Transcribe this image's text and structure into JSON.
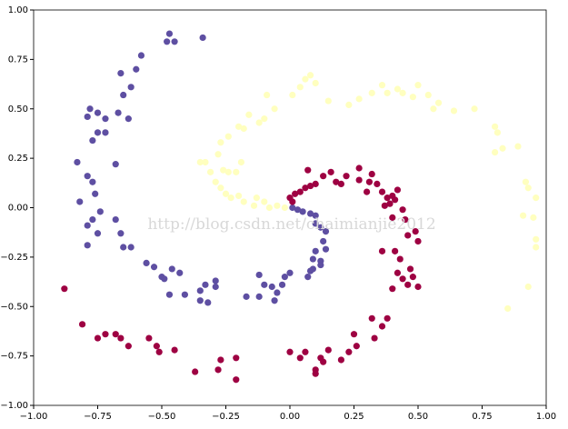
{
  "chart_data": {
    "type": "scatter",
    "xlim": [
      -1,
      1
    ],
    "ylim": [
      -1,
      1
    ],
    "xticks": [
      {
        "value": -1,
        "label": "−1.00"
      },
      {
        "value": -0.75,
        "label": "−0.75"
      },
      {
        "value": -0.5,
        "label": "−0.50"
      },
      {
        "value": -0.25,
        "label": "−0.25"
      },
      {
        "value": 0,
        "label": "0.00"
      },
      {
        "value": 0.25,
        "label": "0.25"
      },
      {
        "value": 0.5,
        "label": "0.50"
      },
      {
        "value": 0.75,
        "label": "0.75"
      },
      {
        "value": 1,
        "label": "1.00"
      }
    ],
    "yticks": [
      {
        "value": -1,
        "label": "−1.00"
      },
      {
        "value": -0.75,
        "label": "−0.75"
      },
      {
        "value": -0.5,
        "label": "−0.50"
      },
      {
        "value": -0.25,
        "label": "−0.25"
      },
      {
        "value": 0,
        "label": "0.00"
      },
      {
        "value": 0.25,
        "label": "0.25"
      },
      {
        "value": 0.5,
        "label": "0.50"
      },
      {
        "value": 0.75,
        "label": "0.75"
      },
      {
        "value": 1,
        "label": "1.00"
      }
    ],
    "watermark": "http://blog.csdn.net/chaimianjie2012",
    "series": [
      {
        "color": "#5e4fa2",
        "x": [
          -0.47,
          -0.45,
          -0.48,
          -0.34,
          -0.58,
          -0.6,
          -0.66,
          -0.62,
          -0.65,
          -0.78,
          -0.79,
          -0.75,
          -0.72,
          -0.67,
          -0.63,
          -0.75,
          -0.72,
          -0.77,
          -0.83,
          -0.68,
          -0.79,
          -0.77,
          -0.76,
          -0.82,
          -0.74,
          -0.68,
          -0.77,
          -0.79,
          -0.75,
          -0.79,
          -0.66,
          -0.65,
          -0.62,
          -0.56,
          -0.53,
          -0.5,
          -0.49,
          -0.46,
          -0.43,
          -0.47,
          -0.41,
          -0.35,
          -0.33,
          -0.32,
          -0.35,
          -0.29,
          -0.29,
          -0.17,
          -0.12,
          -0.12,
          -0.1,
          -0.07,
          -0.05,
          -0.06,
          -0.03,
          -0.02,
          0.0,
          0.07,
          0.08,
          0.09,
          0.09,
          0.1,
          0.12,
          0.14,
          0.13,
          0.14,
          0.12,
          0.1,
          0.1,
          0.08,
          0.05,
          0.03,
          0.01,
          0.12
        ],
        "values": [
          0.88,
          0.84,
          0.84,
          0.86,
          0.77,
          0.7,
          0.68,
          0.61,
          0.57,
          0.5,
          0.46,
          0.48,
          0.45,
          0.48,
          0.45,
          0.38,
          0.38,
          0.34,
          0.23,
          0.22,
          0.16,
          0.13,
          0.07,
          0.03,
          -0.02,
          -0.06,
          -0.06,
          -0.09,
          -0.13,
          -0.19,
          -0.13,
          -0.2,
          -0.2,
          -0.28,
          -0.3,
          -0.35,
          -0.36,
          -0.31,
          -0.33,
          -0.44,
          -0.44,
          -0.42,
          -0.39,
          -0.48,
          -0.47,
          -0.37,
          -0.4,
          -0.45,
          -0.45,
          -0.34,
          -0.39,
          -0.4,
          -0.43,
          -0.47,
          -0.39,
          -0.35,
          -0.33,
          -0.35,
          -0.32,
          -0.31,
          -0.26,
          -0.22,
          -0.27,
          -0.21,
          -0.17,
          -0.12,
          -0.1,
          -0.08,
          -0.04,
          -0.03,
          -0.02,
          -0.01,
          0.0,
          -0.29
        ]
      },
      {
        "color": "#9e0142",
        "x": [
          0.0,
          0.02,
          0.01,
          0.04,
          0.06,
          0.08,
          0.1,
          0.07,
          0.13,
          0.16,
          0.18,
          0.2,
          0.22,
          0.27,
          0.27,
          0.31,
          0.3,
          0.32,
          0.34,
          0.36,
          0.38,
          0.39,
          0.4,
          0.41,
          0.42,
          0.37,
          0.4,
          0.44,
          0.45,
          0.49,
          0.5,
          0.46,
          0.41,
          0.43,
          0.36,
          0.42,
          0.44,
          0.46,
          0.48,
          0.47,
          0.5,
          0.4,
          0.38,
          0.32,
          0.36,
          0.33,
          0.26,
          0.25,
          0.23,
          0.2,
          0.15,
          0.13,
          0.1,
          0.12,
          0.06,
          0.04,
          0.0,
          -0.21,
          -0.27,
          -0.28,
          -0.37,
          -0.21,
          -0.45,
          -0.51,
          -0.52,
          -0.55,
          -0.63,
          -0.66,
          -0.72,
          -0.75,
          -0.68,
          -0.81,
          -0.88,
          0.1
        ],
        "values": [
          0.05,
          0.07,
          0.03,
          0.08,
          0.1,
          0.11,
          0.12,
          0.19,
          0.16,
          0.18,
          0.13,
          0.12,
          0.16,
          0.14,
          0.2,
          0.13,
          0.08,
          0.17,
          0.12,
          0.08,
          0.05,
          0.02,
          0.06,
          0.04,
          0.09,
          0.01,
          -0.05,
          -0.01,
          -0.06,
          -0.12,
          -0.17,
          -0.14,
          -0.22,
          -0.26,
          -0.22,
          -0.33,
          -0.36,
          -0.39,
          -0.35,
          -0.31,
          -0.4,
          -0.41,
          -0.56,
          -0.56,
          -0.6,
          -0.66,
          -0.7,
          -0.64,
          -0.73,
          -0.77,
          -0.72,
          -0.78,
          -0.82,
          -0.76,
          -0.73,
          -0.76,
          -0.73,
          -0.76,
          -0.77,
          -0.82,
          -0.83,
          -0.87,
          -0.72,
          -0.73,
          -0.7,
          -0.66,
          -0.7,
          -0.66,
          -0.64,
          -0.66,
          -0.64,
          -0.59,
          -0.41,
          -0.84
        ]
      },
      {
        "color": "#ffffbf",
        "x": [
          -0.02,
          -0.05,
          -0.08,
          -0.1,
          -0.14,
          -0.18,
          -0.2,
          -0.23,
          -0.25,
          -0.27,
          -0.29,
          -0.31,
          -0.33,
          -0.26,
          -0.24,
          -0.28,
          -0.27,
          -0.24,
          -0.2,
          -0.18,
          -0.16,
          -0.12,
          -0.1,
          -0.09,
          -0.06,
          0.01,
          0.04,
          0.06,
          0.08,
          0.1,
          0.15,
          0.23,
          0.27,
          0.32,
          0.36,
          0.38,
          0.42,
          0.44,
          0.48,
          0.5,
          0.54,
          0.56,
          0.58,
          0.64,
          0.72,
          0.8,
          0.81,
          0.83,
          0.8,
          0.89,
          0.92,
          0.93,
          0.96,
          0.91,
          0.95,
          0.96,
          0.96,
          0.93,
          0.85,
          -0.13,
          -0.21,
          -0.19,
          -0.35
        ],
        "values": [
          0.0,
          0.01,
          0.0,
          0.03,
          0.01,
          0.03,
          0.06,
          0.05,
          0.07,
          0.1,
          0.13,
          0.18,
          0.23,
          0.19,
          0.18,
          0.27,
          0.33,
          0.36,
          0.41,
          0.4,
          0.47,
          0.43,
          0.45,
          0.57,
          0.5,
          0.57,
          0.61,
          0.65,
          0.67,
          0.63,
          0.54,
          0.52,
          0.55,
          0.58,
          0.62,
          0.58,
          0.6,
          0.58,
          0.56,
          0.62,
          0.57,
          0.5,
          0.53,
          0.49,
          0.5,
          0.41,
          0.38,
          0.3,
          0.28,
          0.31,
          0.13,
          0.1,
          0.05,
          -0.04,
          -0.05,
          -0.16,
          -0.2,
          -0.4,
          -0.51,
          0.05,
          0.18,
          0.23,
          0.23
        ]
      }
    ]
  }
}
